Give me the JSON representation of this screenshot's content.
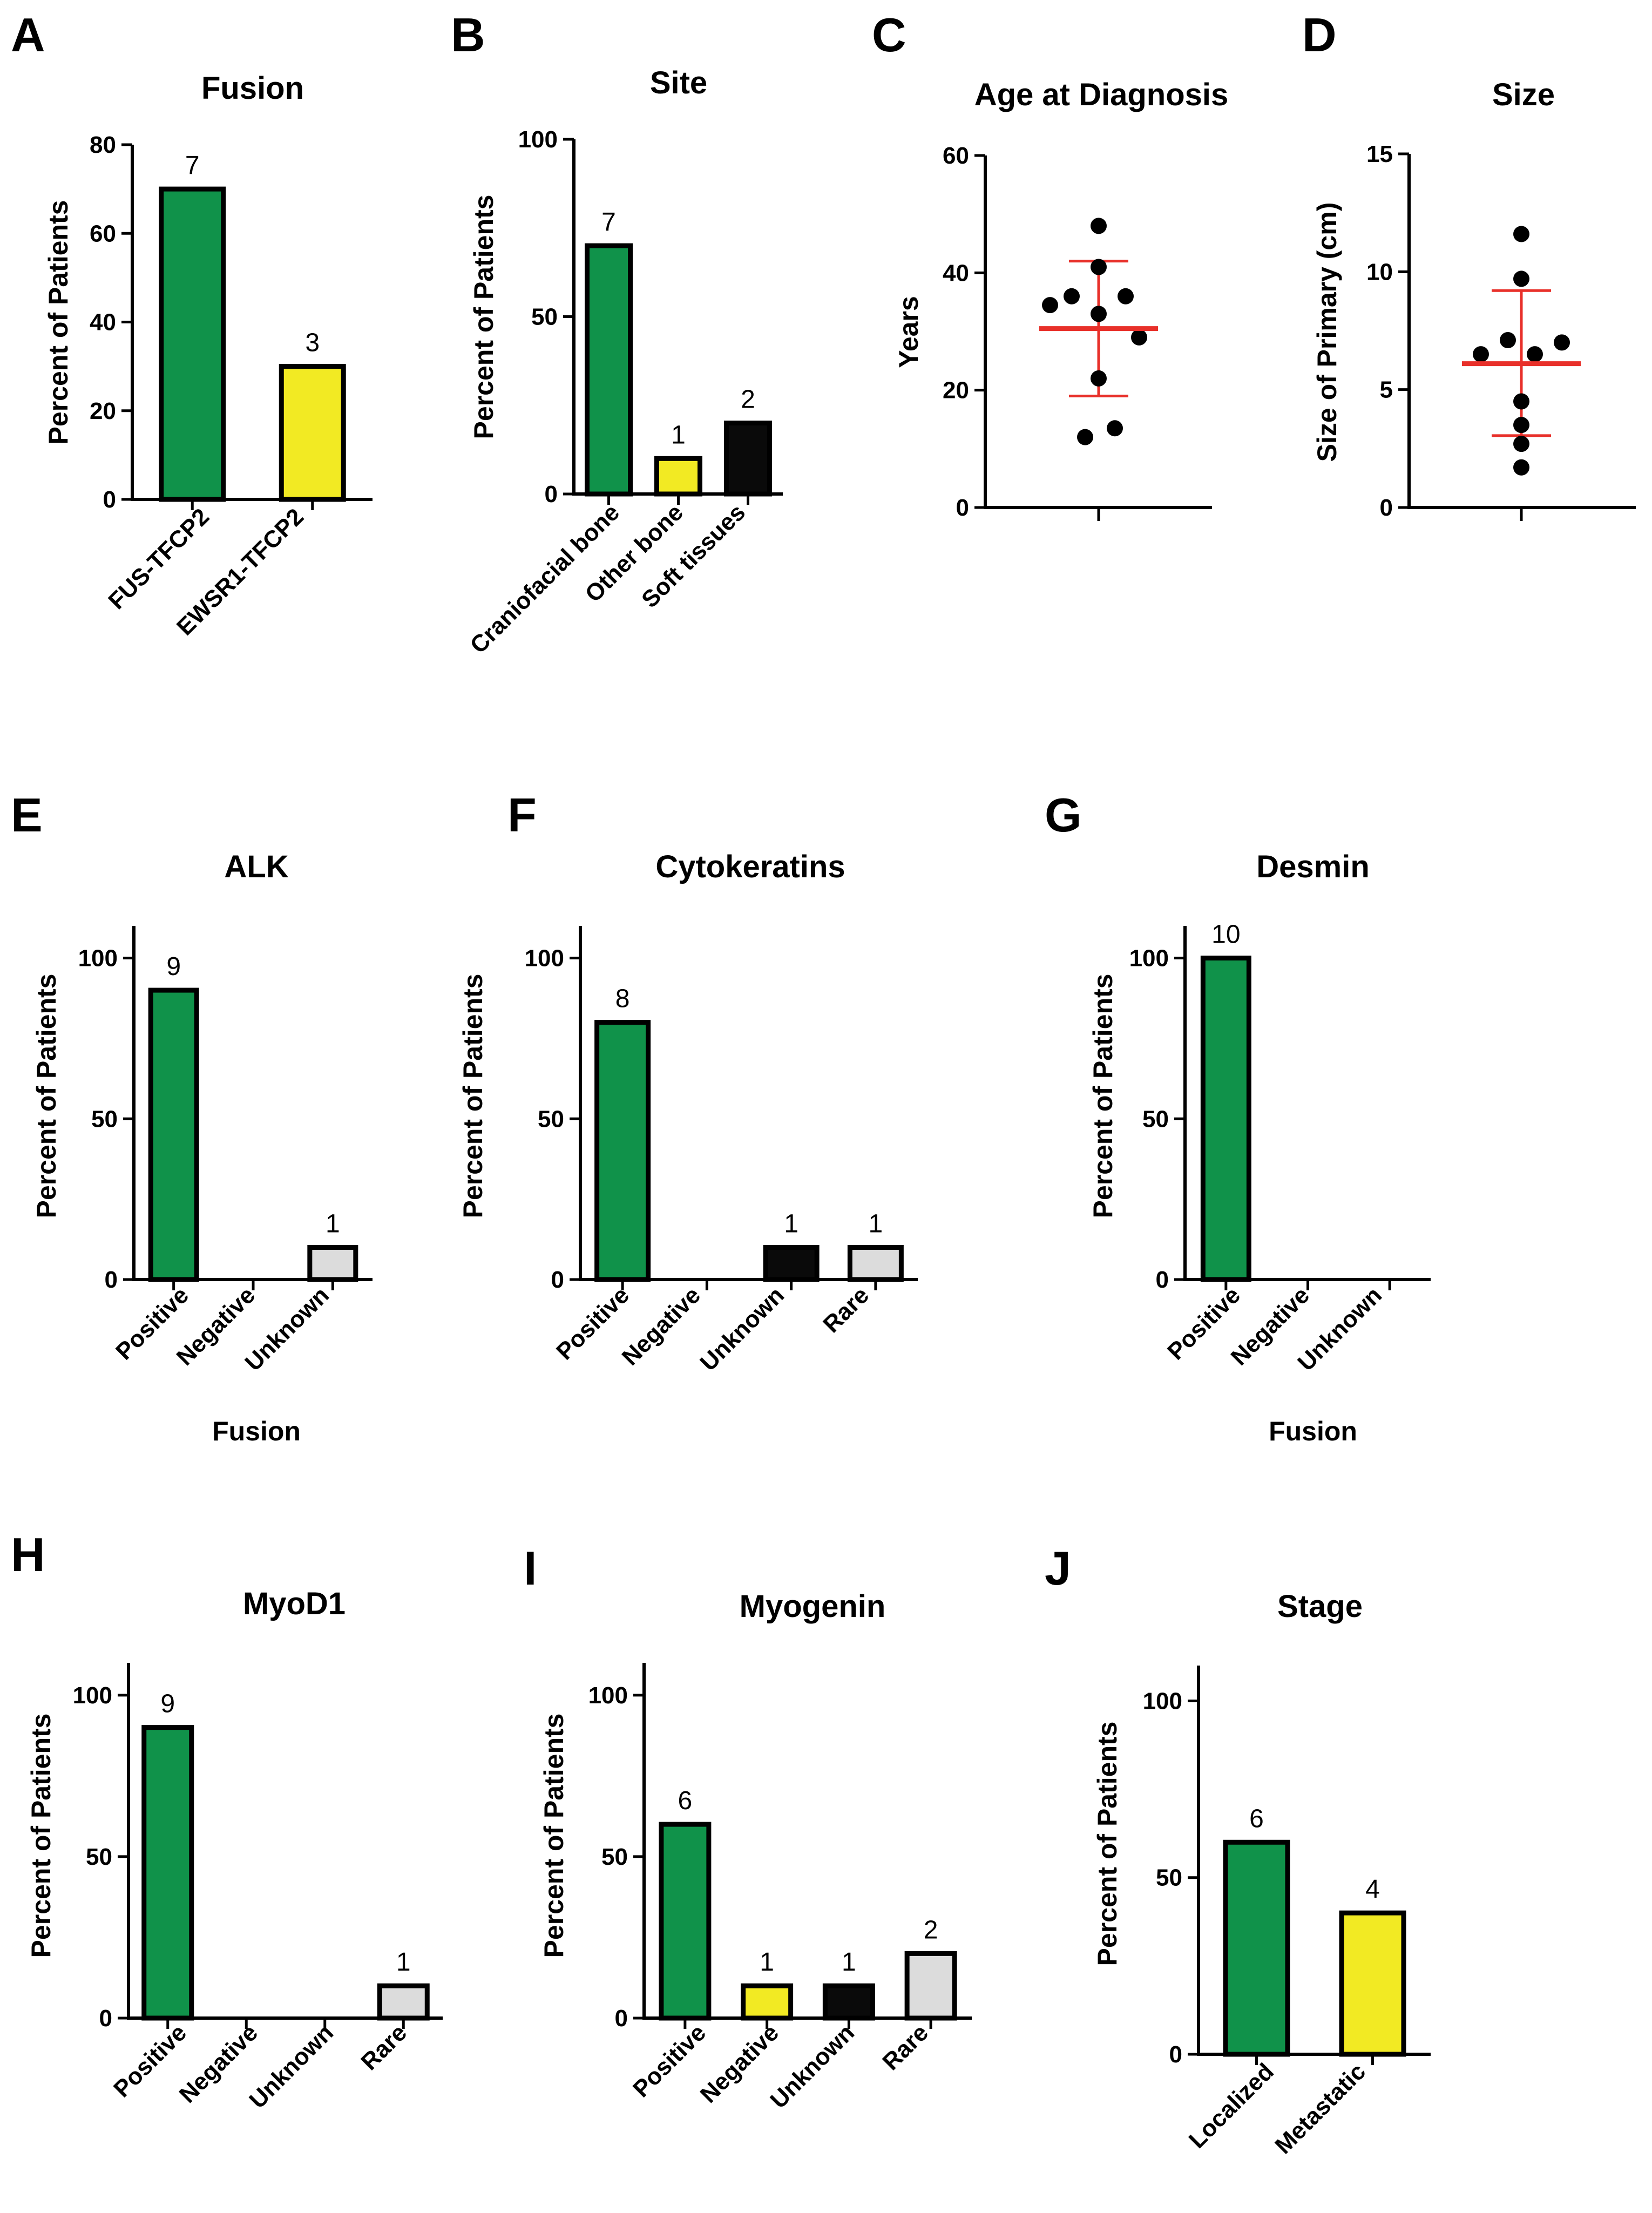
{
  "colors": {
    "green": "#10924a",
    "yellow": "#f2ea23",
    "black": "#0a0a0a",
    "gray": "#dcdcdc",
    "red": "#e8302a",
    "axis": "#000000"
  },
  "chart_data": [
    {
      "id": "A",
      "panel_label": "A",
      "type": "bar",
      "title": "Fusion",
      "ylabel": "Percent of Patients",
      "xlabel": "",
      "ylim": [
        0,
        80
      ],
      "yticks": [
        0,
        20,
        40,
        60,
        80
      ],
      "categories": [
        "FUS-TFCP2",
        "EWSR1-TFCP2"
      ],
      "values": [
        70,
        30
      ],
      "labels": [
        "7",
        "3"
      ],
      "colors": [
        "green",
        "yellow"
      ]
    },
    {
      "id": "B",
      "panel_label": "B",
      "type": "bar",
      "title": "Site",
      "ylabel": "Percent of Patients",
      "xlabel": "",
      "ylim": [
        0,
        100
      ],
      "yticks": [
        0,
        50,
        100
      ],
      "categories": [
        "Craniofacial bone",
        "Other bone",
        "Soft tissues"
      ],
      "values": [
        70,
        10,
        20
      ],
      "labels": [
        "7",
        "1",
        "2"
      ],
      "colors": [
        "green",
        "yellow",
        "black"
      ]
    },
    {
      "id": "C",
      "panel_label": "C",
      "type": "scatter",
      "title": "Age at Diagnosis",
      "ylabel": "Years",
      "ylim": [
        0,
        60
      ],
      "yticks": [
        0,
        20,
        40,
        60
      ],
      "points": [
        48,
        41,
        36,
        36,
        33,
        34.5,
        29,
        22,
        13.5,
        12
      ],
      "mean": 30.5,
      "sd": [
        19,
        42
      ]
    },
    {
      "id": "D",
      "panel_label": "D",
      "type": "scatter",
      "title": "Size",
      "ylabel": "Size of Primary (cm)",
      "ylim": [
        0,
        15
      ],
      "yticks": [
        0,
        5,
        10,
        15
      ],
      "points": [
        11.6,
        9.7,
        7.1,
        7.0,
        6.5,
        6.5,
        4.5,
        3.5,
        2.7,
        1.7
      ],
      "mean": 6.1,
      "sd": [
        3.05,
        9.2
      ]
    },
    {
      "id": "E",
      "panel_label": "E",
      "type": "bar",
      "title": "ALK",
      "ylabel": "Percent of Patients",
      "xlabel": "Fusion",
      "ylim": [
        0,
        110
      ],
      "yticks": [
        0,
        50,
        100
      ],
      "categories": [
        "Positive",
        "Negative",
        "Unknown"
      ],
      "values": [
        90,
        0,
        10
      ],
      "labels": [
        "9",
        "",
        "1"
      ],
      "colors": [
        "green",
        "yellow",
        "gray"
      ]
    },
    {
      "id": "F",
      "panel_label": "F",
      "type": "bar",
      "title": "Cytokeratins",
      "ylabel": "Percent of Patients",
      "xlabel": "",
      "ylim": [
        0,
        110
      ],
      "yticks": [
        0,
        50,
        100
      ],
      "categories": [
        "Positive",
        "Negative",
        "Unknown",
        "Rare"
      ],
      "values": [
        80,
        0,
        10,
        10
      ],
      "labels": [
        "8",
        "",
        "1",
        "1"
      ],
      "colors": [
        "green",
        "yellow",
        "black",
        "gray"
      ]
    },
    {
      "id": "G",
      "panel_label": "G",
      "type": "bar",
      "title": "Desmin",
      "ylabel": "Percent of Patients",
      "xlabel": "Fusion",
      "ylim": [
        0,
        110
      ],
      "yticks": [
        0,
        50,
        100
      ],
      "categories": [
        "Positive",
        "Negative",
        "Unknown"
      ],
      "values": [
        100,
        0,
        0
      ],
      "labels": [
        "10",
        "",
        ""
      ],
      "colors": [
        "green",
        "yellow",
        "gray"
      ]
    },
    {
      "id": "H",
      "panel_label": "H",
      "type": "bar",
      "title": "MyoD1",
      "ylabel": "Percent of Patients",
      "xlabel": "",
      "ylim": [
        0,
        110
      ],
      "yticks": [
        0,
        50,
        100
      ],
      "categories": [
        "Positive",
        "Negative",
        "Unknown",
        "Rare"
      ],
      "values": [
        90,
        0,
        0,
        10
      ],
      "labels": [
        "9",
        "",
        "",
        "1"
      ],
      "colors": [
        "green",
        "yellow",
        "black",
        "gray"
      ]
    },
    {
      "id": "I",
      "panel_label": "I",
      "type": "bar",
      "title": "Myogenin",
      "ylabel": "Percent of Patients",
      "xlabel": "",
      "ylim": [
        0,
        110
      ],
      "yticks": [
        0,
        50,
        100
      ],
      "categories": [
        "Positive",
        "Negative",
        "Unknown",
        "Rare"
      ],
      "values": [
        60,
        10,
        10,
        20
      ],
      "labels": [
        "6",
        "1",
        "1",
        "2"
      ],
      "colors": [
        "green",
        "yellow",
        "black",
        "gray"
      ]
    },
    {
      "id": "J",
      "panel_label": "J",
      "type": "bar",
      "title": "Stage",
      "ylabel": "Percent of Patients",
      "xlabel": "",
      "ylim": [
        0,
        110
      ],
      "yticks": [
        0,
        50,
        100
      ],
      "categories": [
        "Localized",
        "Metastatic"
      ],
      "values": [
        60,
        40
      ],
      "labels": [
        "6",
        "4"
      ],
      "colors": [
        "green",
        "yellow"
      ]
    }
  ]
}
